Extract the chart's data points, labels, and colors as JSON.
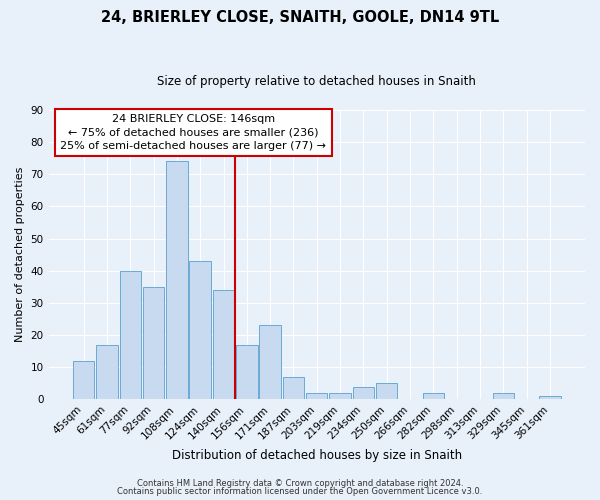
{
  "title": "24, BRIERLEY CLOSE, SNAITH, GOOLE, DN14 9TL",
  "subtitle": "Size of property relative to detached houses in Snaith",
  "xlabel": "Distribution of detached houses by size in Snaith",
  "ylabel": "Number of detached properties",
  "bar_labels": [
    "45sqm",
    "61sqm",
    "77sqm",
    "92sqm",
    "108sqm",
    "124sqm",
    "140sqm",
    "156sqm",
    "171sqm",
    "187sqm",
    "203sqm",
    "219sqm",
    "234sqm",
    "250sqm",
    "266sqm",
    "282sqm",
    "298sqm",
    "313sqm",
    "329sqm",
    "345sqm",
    "361sqm"
  ],
  "bar_values": [
    12,
    17,
    40,
    35,
    74,
    43,
    34,
    17,
    23,
    7,
    2,
    2,
    4,
    5,
    0,
    2,
    0,
    0,
    2,
    0,
    1
  ],
  "bar_color": "#c8daf0",
  "bar_edge_color": "#6aaad4",
  "vline_color": "#cc0000",
  "vline_position": 6.5,
  "ylim": [
    0,
    90
  ],
  "yticks": [
    0,
    10,
    20,
    30,
    40,
    50,
    60,
    70,
    80,
    90
  ],
  "annotation_title": "24 BRIERLEY CLOSE: 146sqm",
  "annotation_line1": "← 75% of detached houses are smaller (236)",
  "annotation_line2": "25% of semi-detached houses are larger (77) →",
  "annotation_box_color": "#ffffff",
  "annotation_box_edge": "#cc0000",
  "footer1": "Contains HM Land Registry data © Crown copyright and database right 2024.",
  "footer2": "Contains public sector information licensed under the Open Government Licence v3.0.",
  "bg_color": "#e8f0fa",
  "grid_color": "#ffffff",
  "title_fontsize": 10.5,
  "subtitle_fontsize": 8.5,
  "xlabel_fontsize": 8.5,
  "ylabel_fontsize": 8,
  "tick_fontsize": 7.5,
  "annot_fontsize": 8,
  "footer_fontsize": 6
}
